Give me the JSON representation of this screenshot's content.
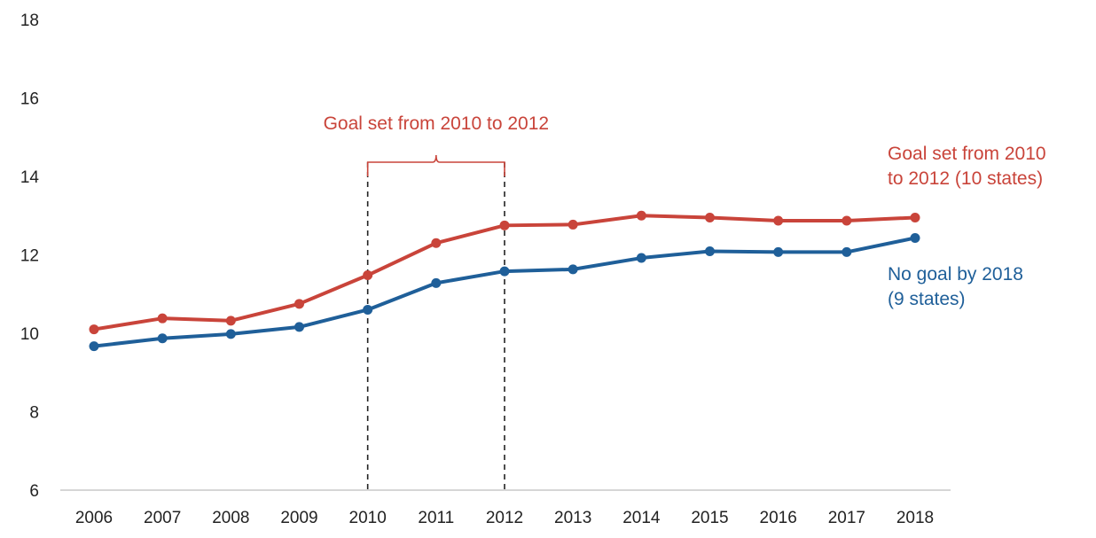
{
  "chart_data": {
    "type": "line",
    "title": "",
    "xlabel": "",
    "ylabel": "",
    "x": [
      2006,
      2007,
      2008,
      2009,
      2010,
      2011,
      2012,
      2013,
      2014,
      2015,
      2016,
      2017,
      2018
    ],
    "ylim": [
      6,
      18
    ],
    "yticks": [
      6,
      8,
      10,
      12,
      14,
      16,
      18
    ],
    "grid": false,
    "series": [
      {
        "name": "Goal set from 2010 to 2012 (10 states)",
        "label_lines": [
          "Goal set from 2010",
          "to 2012 (10 states)"
        ],
        "color": "#c9443a",
        "values": [
          10.1,
          10.38,
          10.32,
          10.75,
          11.48,
          12.3,
          12.75,
          12.77,
          13.0,
          12.95,
          12.87,
          12.87,
          12.95
        ]
      },
      {
        "name": "No goal by 2018 (9 states)",
        "label_lines": [
          "No goal by 2018",
          "(9 states)"
        ],
        "color": "#1f5f99",
        "values": [
          9.67,
          9.87,
          9.98,
          10.16,
          10.6,
          11.28,
          11.58,
          11.63,
          11.92,
          12.09,
          12.07,
          12.07,
          12.43
        ]
      }
    ],
    "annotations": [
      {
        "type": "bracket",
        "text": "Goal set from 2010 to 2012",
        "color": "#c9443a",
        "x_start": 2010,
        "x_end": 2012
      }
    ]
  }
}
